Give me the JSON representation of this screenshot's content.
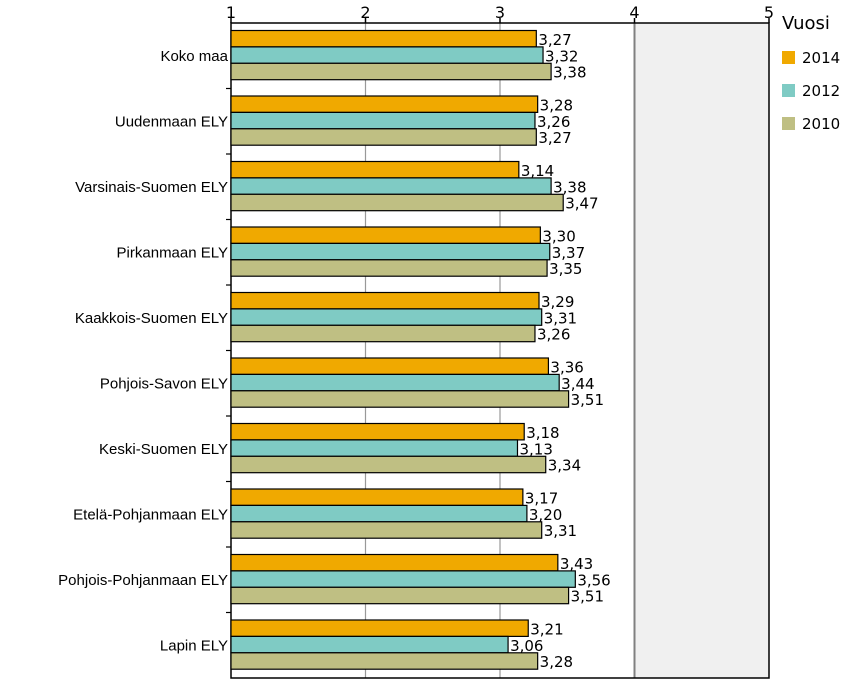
{
  "chart_data": {
    "type": "bar",
    "orientation": "horizontal",
    "title": "",
    "xlabel": "",
    "ylabel": "",
    "xlim": [
      1,
      5
    ],
    "xticks": [
      "1",
      "2",
      "3",
      "4",
      "5"
    ],
    "reference_line": 4,
    "grid": true,
    "legend_title": "Vuosi",
    "legend_position": "right",
    "categories": [
      "Koko maa",
      "Uudenmaan ELY",
      "Varsinais-Suomen ELY",
      "Pirkanmaan ELY",
      "Kaakkois-Suomen ELY",
      "Pohjois-Savon ELY",
      "Keski-Suomen ELY",
      "Etelä-Pohjanmaan ELY",
      "Pohjois-Pohjanmaan ELY",
      "Lapin ELY"
    ],
    "series": [
      {
        "name": "2014",
        "color": "#F0A900",
        "values": [
          3.27,
          3.28,
          3.14,
          3.3,
          3.29,
          3.36,
          3.18,
          3.17,
          3.43,
          3.21
        ],
        "labels": [
          "3,27",
          "3,28",
          "3,14",
          "3,30",
          "3,29",
          "3,36",
          "3,18",
          "3,17",
          "3,43",
          "3,21"
        ]
      },
      {
        "name": "2012",
        "color": "#7FCBC4",
        "values": [
          3.32,
          3.26,
          3.38,
          3.37,
          3.31,
          3.44,
          3.13,
          3.2,
          3.56,
          3.06
        ],
        "labels": [
          "3,32",
          "3,26",
          "3,38",
          "3,37",
          "3,31",
          "3,44",
          "3,13",
          "3,20",
          "3,56",
          "3,06"
        ]
      },
      {
        "name": "2010",
        "color": "#BFBF83",
        "values": [
          3.38,
          3.27,
          3.47,
          3.35,
          3.26,
          3.51,
          3.34,
          3.31,
          3.51,
          3.28
        ],
        "labels": [
          "3,38",
          "3,27",
          "3,47",
          "3,35",
          "3,26",
          "3,51",
          "3,34",
          "3,31",
          "3,51",
          "3,28"
        ]
      }
    ],
    "colors": {
      "plot_background": "#F0F0F0",
      "gridline": "#999999",
      "reference_line": "#808080"
    }
  }
}
